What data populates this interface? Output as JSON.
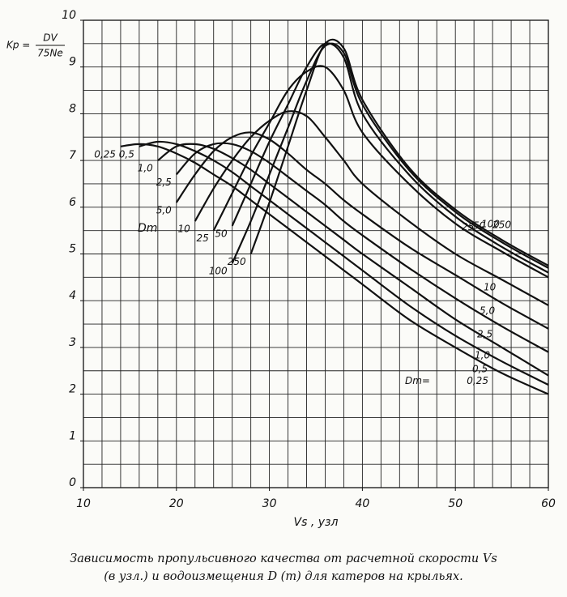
{
  "chart_data": {
    "type": "line",
    "ylabel": {
      "symbol": "Kp =",
      "numerator": "DV",
      "denominator": "75Ne"
    },
    "xlabel": "Vs , узл",
    "caption": [
      "Зависимость пропульсивного качества от расчетной скорости Vs",
      "(в узл.) и водоизмещения D (т) для катеров на крыльях."
    ],
    "annotations": [
      "Dm",
      "Dm="
    ],
    "x": [
      14,
      16,
      18,
      20,
      22,
      24,
      26,
      28,
      30,
      32,
      34,
      36,
      38,
      40,
      45,
      50,
      55,
      60
    ],
    "series": [
      {
        "name": "0,25",
        "color": "#111",
        "values": [
          7.3,
          7.35,
          7.3,
          7.15,
          6.95,
          6.7,
          6.45,
          6.15,
          5.85,
          5.55,
          5.25,
          4.95,
          4.65,
          4.35,
          3.6,
          3.0,
          2.45,
          2.0
        ]
      },
      {
        "name": "0,5",
        "color": "#111",
        "values": [
          null,
          7.3,
          7.4,
          7.35,
          7.2,
          7.0,
          6.75,
          6.45,
          6.15,
          5.85,
          5.55,
          5.25,
          4.95,
          4.65,
          3.9,
          3.25,
          2.7,
          2.2
        ]
      },
      {
        "name": "1,0",
        "color": "#111",
        "values": [
          null,
          null,
          7.0,
          7.3,
          7.35,
          7.25,
          7.05,
          6.8,
          6.5,
          6.2,
          5.9,
          5.6,
          5.3,
          5.0,
          4.3,
          3.6,
          3.0,
          2.4
        ]
      },
      {
        "name": "2,5",
        "color": "#111",
        "values": [
          null,
          null,
          null,
          6.7,
          7.15,
          7.35,
          7.35,
          7.2,
          6.95,
          6.65,
          6.35,
          6.05,
          5.7,
          5.4,
          4.7,
          4.05,
          3.45,
          2.9
        ]
      },
      {
        "name": "5,0",
        "color": "#111",
        "values": [
          null,
          null,
          null,
          6.1,
          6.7,
          7.2,
          7.5,
          7.6,
          7.45,
          7.15,
          6.8,
          6.5,
          6.15,
          5.85,
          5.15,
          4.55,
          3.95,
          3.4
        ]
      },
      {
        "name": "10",
        "color": "#111",
        "values": [
          null,
          null,
          null,
          null,
          5.7,
          6.4,
          7.0,
          7.5,
          7.85,
          8.05,
          7.95,
          7.5,
          7.0,
          6.5,
          5.7,
          5.0,
          4.45,
          3.9
        ]
      },
      {
        "name": "25",
        "color": "#111",
        "values": [
          null,
          null,
          null,
          null,
          null,
          5.5,
          6.3,
          7.1,
          7.8,
          8.5,
          8.9,
          9.0,
          8.5,
          7.6,
          6.5,
          5.65,
          5.05,
          4.5
        ]
      },
      {
        "name": "50",
        "color": "#111",
        "values": [
          null,
          null,
          null,
          null,
          null,
          null,
          5.6,
          6.5,
          7.4,
          8.2,
          9.0,
          9.5,
          9.2,
          8.0,
          6.7,
          5.8,
          5.15,
          4.6
        ]
      },
      {
        "name": "100",
        "color": "#111",
        "values": [
          null,
          null,
          null,
          null,
          null,
          null,
          4.8,
          5.7,
          6.7,
          7.7,
          8.7,
          9.45,
          9.3,
          8.2,
          6.8,
          5.9,
          5.25,
          4.7
        ]
      },
      {
        "name": "250",
        "color": "#111",
        "values": [
          null,
          null,
          null,
          null,
          null,
          null,
          null,
          5.0,
          6.1,
          7.3,
          8.5,
          9.5,
          9.4,
          8.3,
          6.85,
          5.95,
          5.3,
          4.75
        ]
      }
    ],
    "xlim": [
      10,
      60
    ],
    "xticks": [
      10,
      20,
      30,
      40,
      50,
      60
    ],
    "ylim": [
      0,
      10
    ],
    "yticks": [
      0,
      1,
      2,
      3,
      4,
      5,
      6,
      7,
      8,
      9,
      10
    ],
    "xgrid": [
      10,
      12,
      14,
      16,
      18,
      20,
      22,
      24,
      26,
      28,
      30,
      32,
      34,
      36,
      38,
      40,
      42,
      44,
      46,
      48,
      50,
      52,
      54,
      56,
      58,
      60
    ],
    "ygrid": [
      0,
      0.5,
      1,
      1.5,
      2,
      2.5,
      3,
      3.5,
      4,
      4.5,
      5,
      5.5,
      6,
      6.5,
      7,
      7.5,
      8,
      8.5,
      9,
      9.5,
      10
    ],
    "grid": true
  }
}
